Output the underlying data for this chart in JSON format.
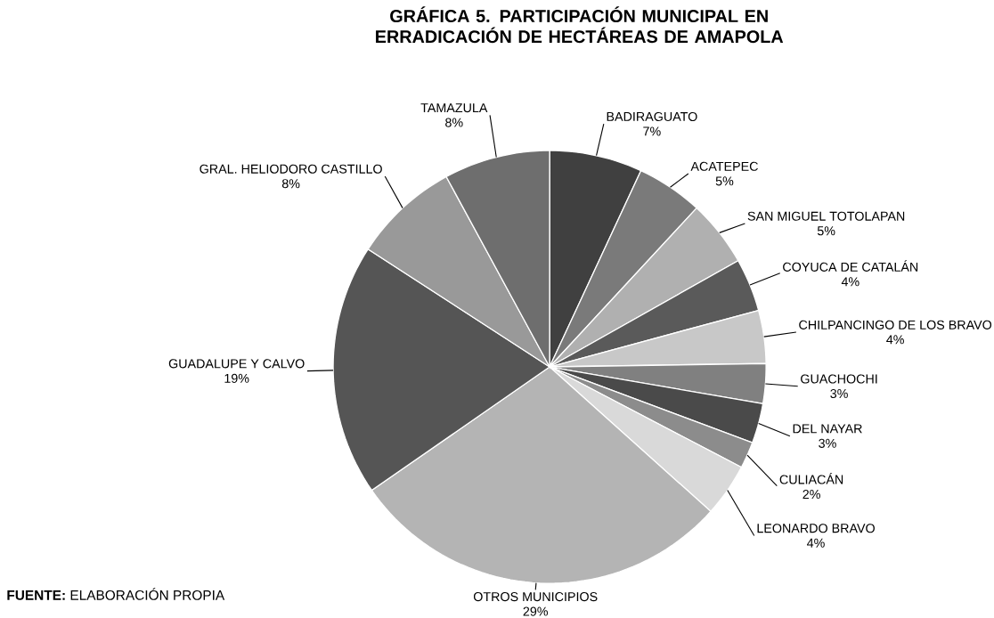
{
  "chart_data": {
    "type": "pie",
    "title": "GRÁFICA 5. PARTICIPACIÓN MUNICIPAL EN ERRADICACIÓN DE HECTÁREAS DE AMAPOLA",
    "categories": [
      "BADIRAGUATO",
      "ACATEPEC",
      "SAN MIGUEL TOTOLAPAN",
      "COYUCA DE CATALÁN",
      "CHILPANCINGO DE LOS BRAVO",
      "GUACHOCHI",
      "DEL NAYAR",
      "CULIACÁN",
      "LEONARDO BRAVO",
      "OTROS MUNICIPIOS",
      "GUADALUPE Y CALVO",
      "GRAL. HELIODORO CASTILLO",
      "TAMAZULA"
    ],
    "values": [
      7,
      5,
      5,
      4,
      4,
      3,
      3,
      2,
      4,
      29,
      19,
      8,
      8
    ],
    "value_labels": [
      "7%",
      "5%",
      "5%",
      "4%",
      "4%",
      "3%",
      "3%",
      "2%",
      "4%",
      "29%",
      "19%",
      "8%",
      "8%"
    ],
    "colors": [
      "#404040",
      "#7a7a7a",
      "#b0b0b0",
      "#5a5a5a",
      "#c8c8c8",
      "#808080",
      "#4a4a4a",
      "#8c8c8c",
      "#d9d9d9",
      "#b4b4b4",
      "#555555",
      "#999999",
      "#6e6e6e"
    ],
    "annotations": [
      "**FUENTE:** ELABORACIÓN PROPIA"
    ]
  }
}
